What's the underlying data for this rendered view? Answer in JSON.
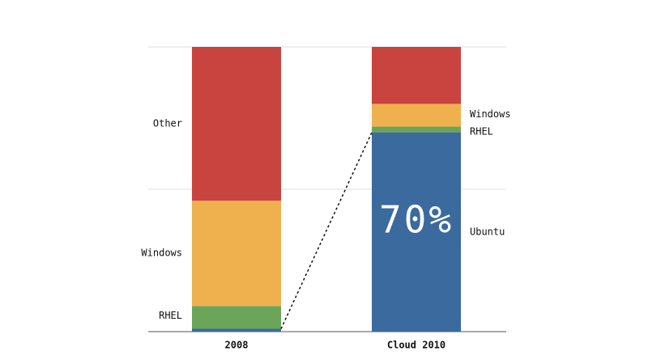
{
  "chart_data": {
    "type": "stacked-bar",
    "categories": [
      "2008",
      "Cloud 2010"
    ],
    "series": [
      {
        "name": "Ubuntu",
        "color": "#3b6a9e",
        "values": [
          1,
          70
        ],
        "value_labels": [
          null,
          "70%"
        ]
      },
      {
        "name": "RHEL",
        "color": "#6ba55a",
        "values": [
          8,
          2
        ]
      },
      {
        "name": "Windows",
        "color": "#eeb14e",
        "values": [
          37,
          8
        ]
      },
      {
        "name": "Other",
        "color": "#c9433f",
        "values": [
          54,
          20
        ]
      }
    ],
    "ylim": [
      0,
      100
    ],
    "yticks": [
      0,
      50,
      100
    ],
    "grid": true
  }
}
